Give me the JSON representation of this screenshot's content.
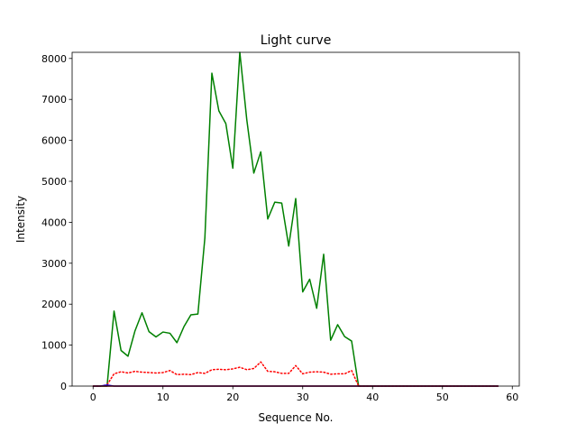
{
  "chart_data": {
    "type": "line",
    "title": "Light curve",
    "xlabel": "Sequence No.",
    "ylabel": "Intensity",
    "xlim": [
      -3,
      61
    ],
    "ylim": [
      0,
      8150
    ],
    "xticks": [
      0,
      10,
      20,
      30,
      40,
      50,
      60
    ],
    "yticks": [
      0,
      1000,
      2000,
      3000,
      4000,
      5000,
      6000,
      7000,
      8000
    ],
    "grid": false,
    "series": [
      {
        "color": "#008000",
        "style": "solid",
        "x": [
          0,
          1,
          2,
          3,
          4,
          5,
          6,
          7,
          8,
          9,
          10,
          11,
          12,
          13,
          14,
          15,
          16,
          17,
          18,
          19,
          20,
          21,
          22,
          23,
          24,
          25,
          26,
          27,
          28,
          29,
          30,
          31,
          32,
          33,
          34,
          35,
          36,
          37,
          38,
          39,
          40,
          41,
          42,
          43,
          44,
          45,
          46,
          47,
          48,
          49,
          50,
          51,
          52,
          53,
          54,
          55,
          56,
          57,
          58
        ],
        "y": [
          0,
          0,
          0,
          1830,
          870,
          730,
          1350,
          1790,
          1330,
          1200,
          1320,
          1290,
          1060,
          1450,
          1740,
          1760,
          3620,
          7640,
          6720,
          6410,
          5320,
          8150,
          6500,
          5200,
          5720,
          4080,
          4490,
          4470,
          3420,
          4580,
          2300,
          2610,
          1900,
          3220,
          1120,
          1500,
          1210,
          1100,
          0,
          0,
          0,
          0,
          0,
          0,
          0,
          0,
          0,
          0,
          0,
          0,
          0,
          0,
          0,
          0,
          0,
          0,
          0,
          0,
          0
        ]
      },
      {
        "color": "#ff0000",
        "style": "dotted",
        "x": [
          0,
          1,
          2,
          3,
          4,
          5,
          6,
          7,
          8,
          9,
          10,
          11,
          12,
          13,
          14,
          15,
          16,
          17,
          18,
          19,
          20,
          21,
          22,
          23,
          24,
          25,
          26,
          27,
          28,
          29,
          30,
          31,
          32,
          33,
          34,
          35,
          36,
          37,
          38,
          39,
          40,
          41,
          42,
          43,
          44,
          45,
          46,
          47,
          48,
          49,
          50,
          51,
          52,
          53,
          54,
          55,
          56,
          57,
          58
        ],
        "y": [
          0,
          0,
          30,
          300,
          350,
          320,
          360,
          340,
          330,
          320,
          330,
          380,
          280,
          290,
          280,
          330,
          310,
          400,
          410,
          400,
          420,
          460,
          400,
          430,
          590,
          360,
          350,
          310,
          310,
          500,
          300,
          340,
          350,
          340,
          290,
          300,
          300,
          380,
          0,
          0,
          0,
          0,
          0,
          0,
          0,
          0,
          0,
          0,
          0,
          0,
          0,
          0,
          0,
          0,
          0,
          0,
          0,
          0,
          0
        ]
      },
      {
        "color": "#0000ff",
        "style": "solid",
        "x": [
          0,
          1,
          2,
          3,
          4,
          5,
          6,
          7,
          8,
          9,
          10,
          11,
          12,
          13,
          14,
          15,
          16,
          17,
          18,
          19,
          20,
          21,
          22,
          23,
          24,
          25,
          26,
          27,
          28,
          29,
          30,
          31,
          32,
          33,
          34,
          35,
          36,
          37,
          38,
          39,
          40,
          41,
          42,
          43,
          44,
          45,
          46,
          47,
          48,
          49,
          50,
          51,
          52,
          53,
          54,
          55,
          56,
          57,
          58
        ],
        "y": [
          0,
          0,
          25,
          0,
          0,
          0,
          0,
          0,
          0,
          0,
          0,
          0,
          0,
          0,
          0,
          0,
          0,
          0,
          0,
          0,
          0,
          0,
          0,
          0,
          0,
          0,
          0,
          0,
          0,
          0,
          0,
          0,
          0,
          0,
          0,
          0,
          0,
          0,
          0,
          0,
          0,
          0,
          0,
          0,
          0,
          0,
          0,
          0,
          0,
          0,
          0,
          0,
          0,
          0,
          0,
          0,
          0,
          0,
          0
        ]
      },
      {
        "color": "#8b0000",
        "style": "solid",
        "x": [
          0,
          1,
          2,
          3,
          4,
          5,
          6,
          7,
          8,
          9,
          10,
          11,
          12,
          13,
          14,
          15,
          16,
          17,
          18,
          19,
          20,
          21,
          22,
          23,
          24,
          25,
          26,
          27,
          28,
          29,
          30,
          31,
          32,
          33,
          34,
          35,
          36,
          37,
          38,
          39,
          40,
          41,
          42,
          43,
          44,
          45,
          46,
          47,
          48,
          49,
          50,
          51,
          52,
          53,
          54,
          55,
          56,
          57,
          58
        ],
        "y": [
          0,
          0,
          0,
          0,
          0,
          0,
          0,
          0,
          0,
          0,
          0,
          0,
          0,
          0,
          0,
          0,
          0,
          0,
          0,
          0,
          0,
          0,
          0,
          0,
          0,
          0,
          0,
          0,
          0,
          0,
          0,
          0,
          0,
          0,
          0,
          0,
          0,
          0,
          0,
          0,
          0,
          0,
          0,
          0,
          0,
          0,
          0,
          0,
          0,
          0,
          0,
          0,
          0,
          0,
          0,
          0,
          0,
          0,
          0
        ]
      }
    ]
  }
}
